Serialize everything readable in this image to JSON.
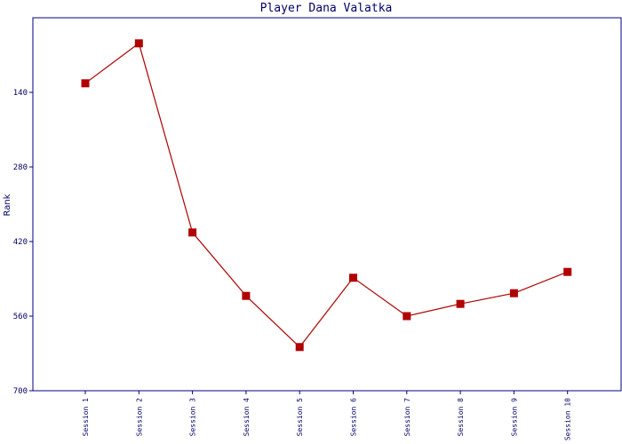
{
  "chart_data": {
    "type": "line",
    "title": "Player Dana Valatka",
    "y_label": "Rank",
    "categories": [
      "Session 1",
      "Session 2",
      "Session 3",
      "Session 4",
      "Session 5",
      "Session 6",
      "Session 7",
      "Session 8",
      "Session 9",
      "Session 10"
    ],
    "series": [
      {
        "name": "Rank",
        "color": "#b00000",
        "values": [
          123,
          48,
          403,
          522,
          618,
          488,
          560,
          537,
          517,
          477
        ]
      }
    ],
    "ylim": [
      0,
      700
    ],
    "yticks": [
      140,
      280,
      420,
      560,
      700
    ],
    "y_inverted": true,
    "grid": false,
    "legend": false
  }
}
